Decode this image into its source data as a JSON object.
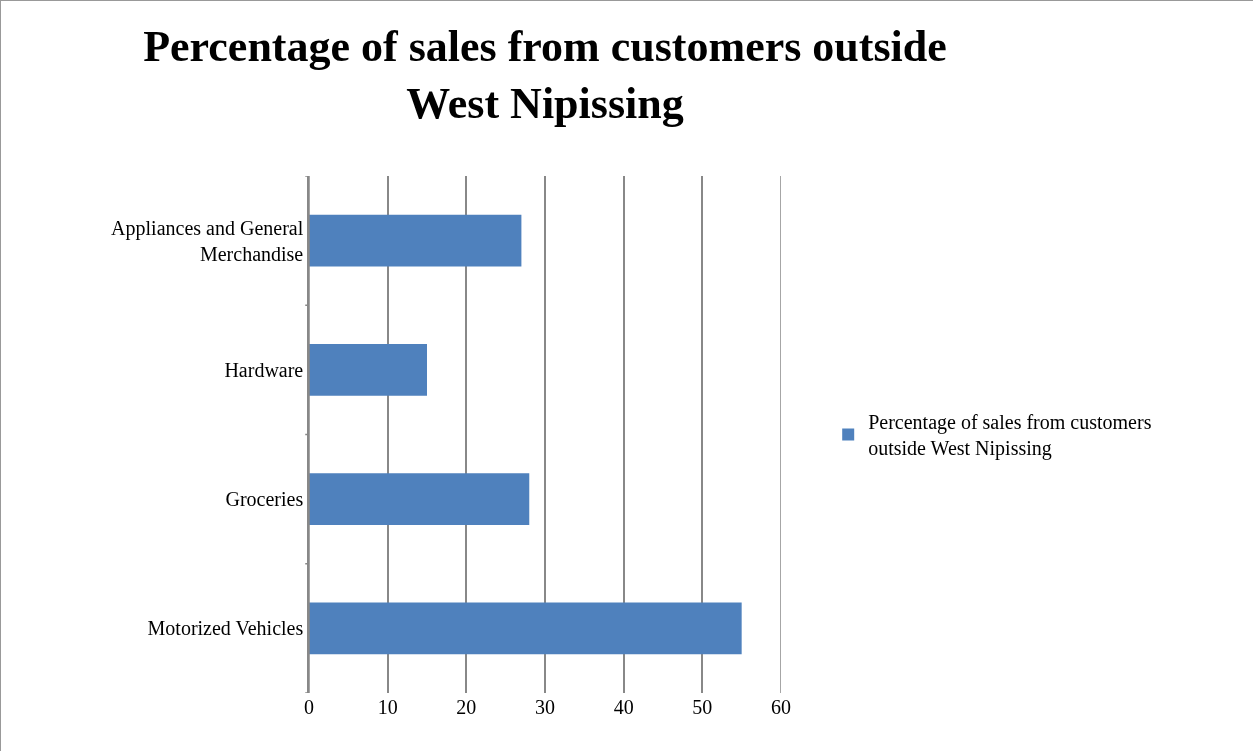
{
  "chart_data": {
    "type": "bar",
    "orientation": "horizontal",
    "title": "Percentage of sales from customers outside West Nipissing",
    "categories": [
      "Appliances and General Merchandise",
      "Hardware",
      "Groceries",
      "Motorized Vehicles"
    ],
    "series": [
      {
        "name": "Percentage of sales from customers outside West Nipissing",
        "color": "#4f81bd",
        "values": [
          27,
          15,
          28,
          55
        ]
      }
    ],
    "xlim": [
      0,
      60
    ],
    "xticks": [
      0,
      10,
      20,
      30,
      40,
      50,
      60
    ],
    "grid": "x",
    "legend": "right"
  }
}
